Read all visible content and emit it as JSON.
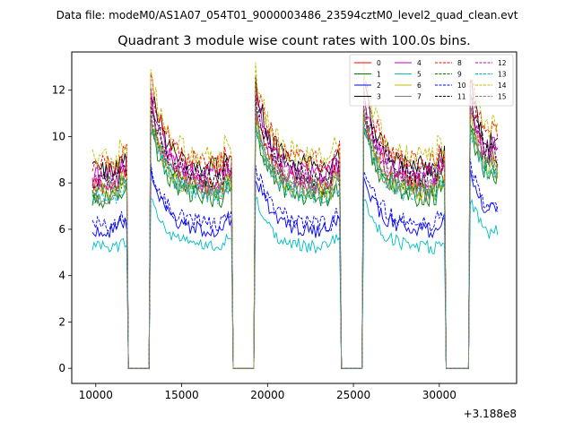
{
  "chart_data": {
    "type": "line",
    "suptitle": "Data file: modeM0/AS1A07_054T01_9000003486_23594cztM0_level2_quad_clean.evt",
    "title": "Quadrant 3 module wise count rates with 100.0s bins.",
    "xlabel": "",
    "ylabel": "",
    "offset_label": "+3.188e8",
    "xlim": [
      8600,
      34500
    ],
    "ylim": [
      -0.65,
      13.65
    ],
    "x_ticks": [
      10000,
      15000,
      20000,
      25000,
      30000
    ],
    "x_tick_labels": [
      "10000",
      "15000",
      "20000",
      "25000",
      "30000"
    ],
    "y_ticks": [
      0,
      2,
      4,
      6,
      8,
      10,
      12
    ],
    "y_tick_labels": [
      "0",
      "2",
      "4",
      "6",
      "8",
      "10",
      "12"
    ],
    "x_start": 9800,
    "x_end": 33400,
    "bin": 100,
    "segments": [
      {
        "start": 9800,
        "end": 11850,
        "on": true
      },
      {
        "start": 12050,
        "end": 13000,
        "on": false
      },
      {
        "start": 13200,
        "end": 17950,
        "on": true
      },
      {
        "start": 18150,
        "end": 19100,
        "on": false
      },
      {
        "start": 19300,
        "end": 24250,
        "on": true
      },
      {
        "start": 24450,
        "end": 25400,
        "on": false
      },
      {
        "start": 25600,
        "end": 30350,
        "on": true
      },
      {
        "start": 30550,
        "end": 31600,
        "on": false
      },
      {
        "start": 31800,
        "end": 33400,
        "on": true
      }
    ],
    "legend_position": "upper right",
    "series": [
      {
        "name": "0",
        "color": "#ff0000",
        "dash": "solid",
        "level": 7.9
      },
      {
        "name": "1",
        "color": "#008000",
        "dash": "solid",
        "level": 7.3
      },
      {
        "name": "2",
        "color": "#0000ff",
        "dash": "solid",
        "level": 5.9
      },
      {
        "name": "3",
        "color": "#000000",
        "dash": "solid",
        "level": 8.6
      },
      {
        "name": "4",
        "color": "#bf00bf",
        "dash": "solid",
        "level": 8.3
      },
      {
        "name": "5",
        "color": "#00bfbf",
        "dash": "solid",
        "level": 5.2
      },
      {
        "name": "6",
        "color": "#bfbf00",
        "dash": "solid",
        "level": 7.6
      },
      {
        "name": "7",
        "color": "#808080",
        "dash": "solid",
        "level": 7.5
      },
      {
        "name": "8",
        "color": "#ff0000",
        "dash": "dashed",
        "level": 8.8
      },
      {
        "name": "9",
        "color": "#008000",
        "dash": "dashed",
        "level": 7.7
      },
      {
        "name": "10",
        "color": "#0000ff",
        "dash": "dashed",
        "level": 6.2
      },
      {
        "name": "11",
        "color": "#000000",
        "dash": "dashed",
        "level": 8.2
      },
      {
        "name": "12",
        "color": "#bf00bf",
        "dash": "dashed",
        "level": 8.0
      },
      {
        "name": "13",
        "color": "#00bfbf",
        "dash": "dashed",
        "level": 7.4
      },
      {
        "name": "14",
        "color": "#bfbf00",
        "dash": "dashed",
        "level": 9.0
      },
      {
        "name": "15",
        "color": "#808080",
        "dash": "dashed",
        "level": 7.8
      }
    ]
  }
}
